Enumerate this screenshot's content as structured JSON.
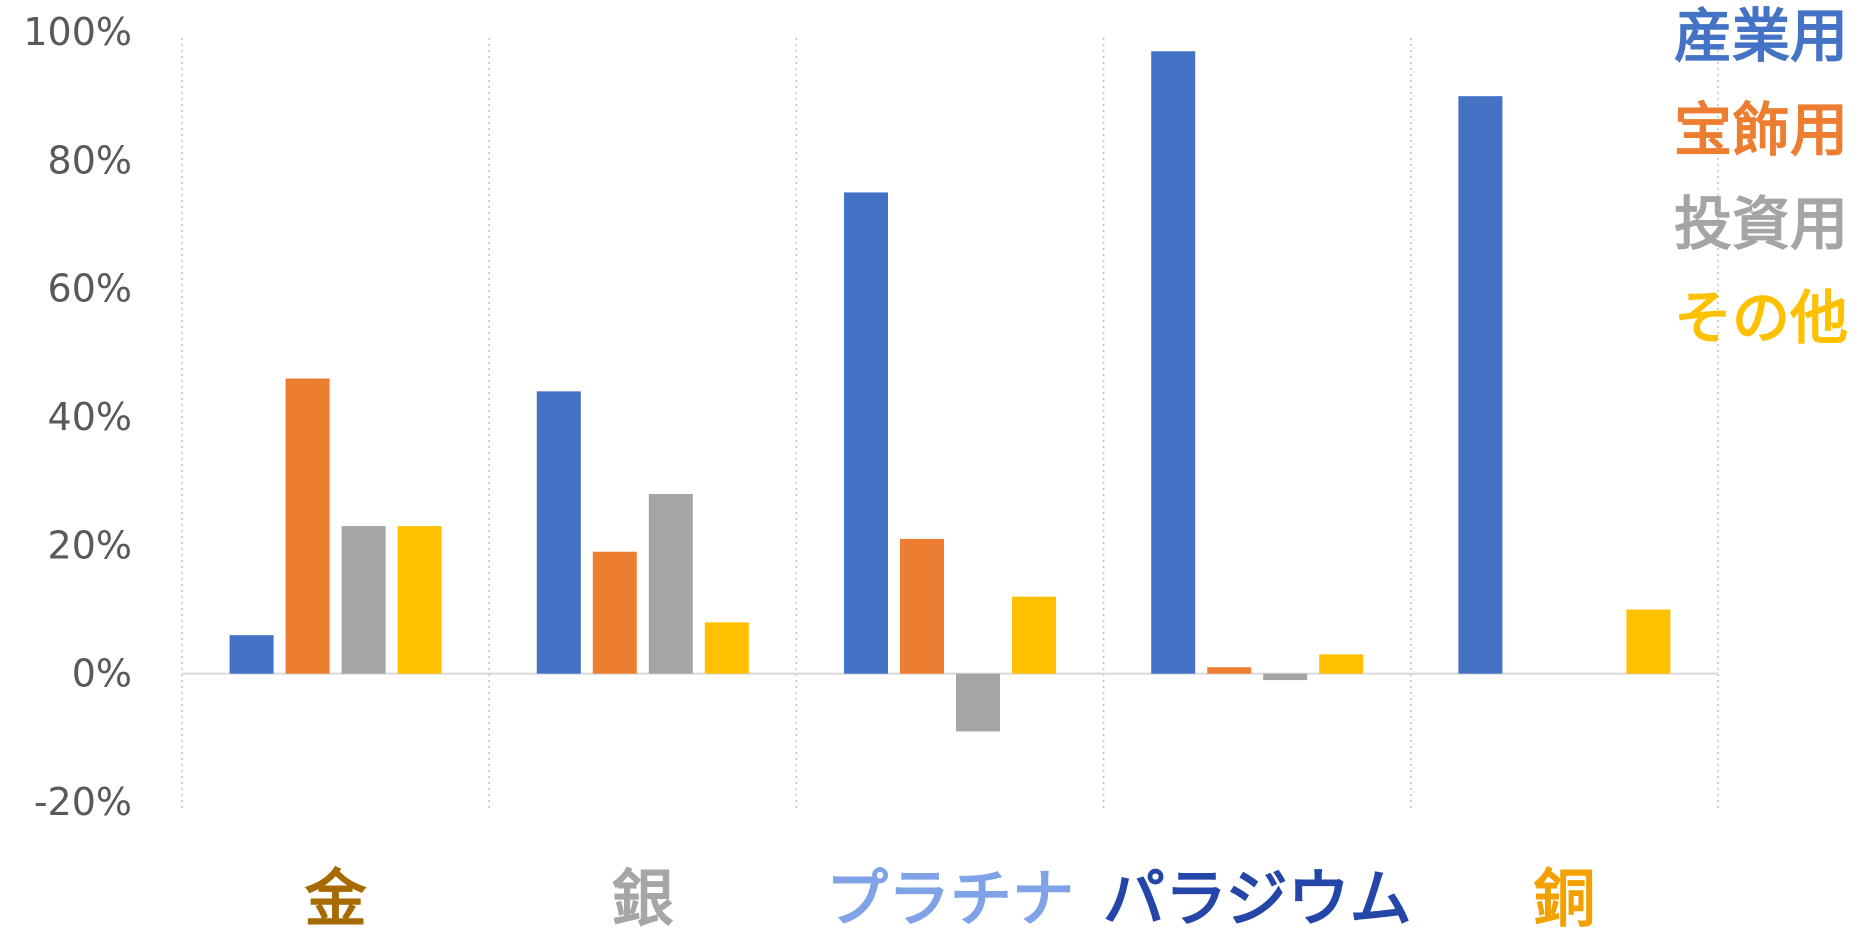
{
  "chart_data": {
    "type": "bar",
    "categories": [
      "金",
      "銀",
      "プラチナ",
      "パラジウム",
      "銅"
    ],
    "category_colors": [
      "#A66A00",
      "#A6A6A6",
      "#7FA3E6",
      "#2346A8",
      "#F2A100"
    ],
    "series": [
      {
        "name": "産業用",
        "color": "#4472C4",
        "values": [
          6,
          44,
          75,
          97,
          90
        ]
      },
      {
        "name": "宝飾用",
        "color": "#ED7D31",
        "values": [
          46,
          19,
          21,
          1,
          null
        ]
      },
      {
        "name": "投資用",
        "color": "#A5A5A5",
        "values": [
          23,
          28,
          -9,
          -1,
          null
        ]
      },
      {
        "name": "その他",
        "color": "#FFC000",
        "values": [
          23,
          8,
          12,
          3,
          10
        ]
      }
    ],
    "ylim": [
      -20,
      100
    ],
    "yticks": [
      -20,
      0,
      20,
      40,
      60,
      80,
      100
    ],
    "ytick_labels": [
      "-20%",
      "0%",
      "20%",
      "40%",
      "60%",
      "80%",
      "100%"
    ],
    "legend_position": "top-right",
    "grid": "vertical dotted category separators",
    "title": "",
    "xlabel": "",
    "ylabel": ""
  }
}
